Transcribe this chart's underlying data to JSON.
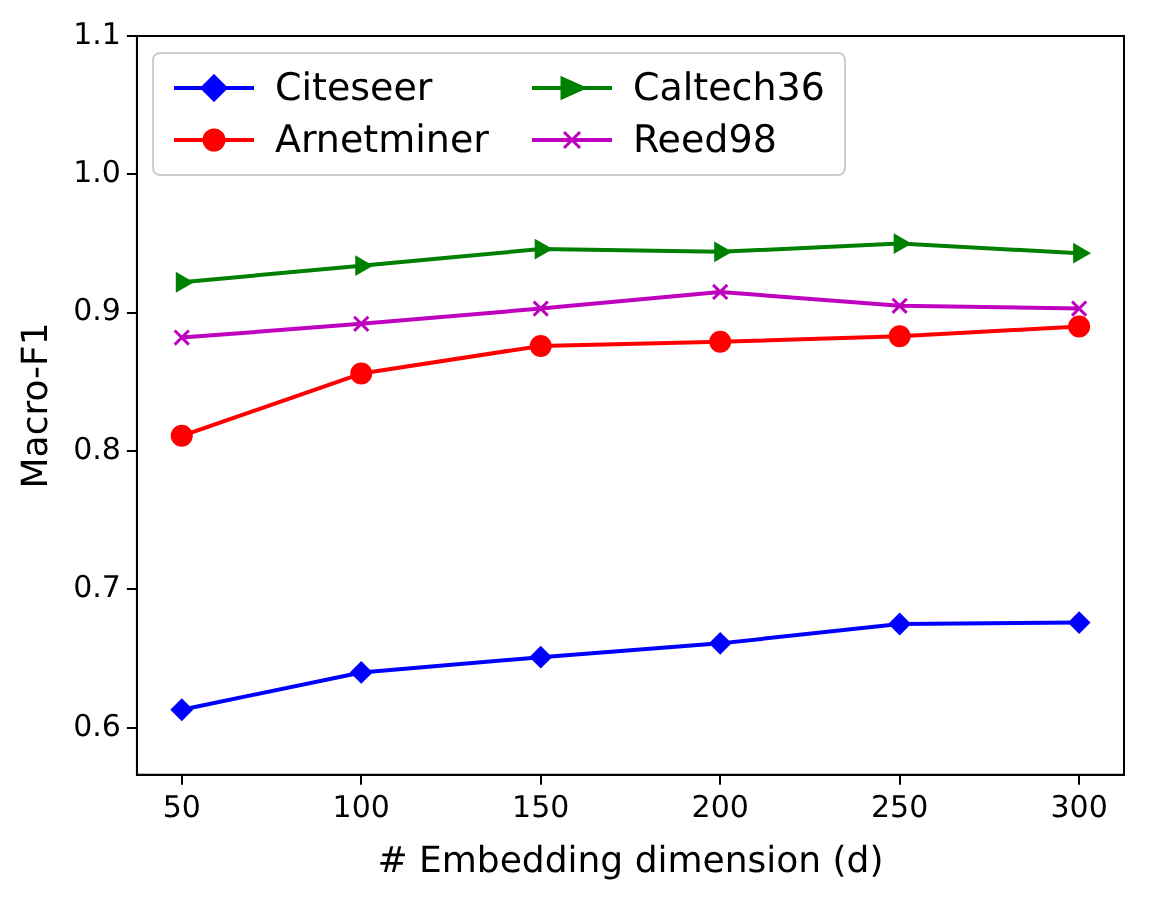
{
  "chart_data": {
    "type": "line",
    "xlabel": "# Embedding dimension (d)",
    "ylabel": "Macro-F1",
    "x": [
      50,
      100,
      150,
      200,
      250,
      300
    ],
    "series": [
      {
        "name": "Citeseer",
        "color": "#0000ff",
        "marker": "diamond",
        "values": [
          0.613,
          0.64,
          0.651,
          0.661,
          0.675,
          0.676
        ]
      },
      {
        "name": "Arnetminer",
        "color": "#ff0000",
        "marker": "circle",
        "values": [
          0.811,
          0.856,
          0.876,
          0.879,
          0.883,
          0.89
        ]
      },
      {
        "name": "Caltech36",
        "color": "#008000",
        "marker": "triangle",
        "values": [
          0.922,
          0.934,
          0.946,
          0.944,
          0.95,
          0.943
        ]
      },
      {
        "name": "Reed98",
        "color": "#bf00bf",
        "marker": "cross",
        "values": [
          0.882,
          0.892,
          0.903,
          0.915,
          0.905,
          0.903
        ]
      }
    ],
    "xlim": [
      37.5,
      312.5
    ],
    "xticks": [
      50,
      100,
      150,
      200,
      250,
      300
    ],
    "ylim": [
      0.566,
      1.1
    ],
    "yticks": [
      {
        "value": 0.6,
        "label": "0.6"
      },
      {
        "value": 0.7,
        "label": "0.7"
      },
      {
        "value": 0.8,
        "label": "0.8"
      },
      {
        "value": 0.9,
        "label": "0.9"
      },
      {
        "value": 1.0,
        "label": "1.0"
      },
      {
        "value": 1.1,
        "label": "1.1"
      }
    ],
    "grid": false,
    "legend": "top left",
    "line_style": "solid"
  }
}
